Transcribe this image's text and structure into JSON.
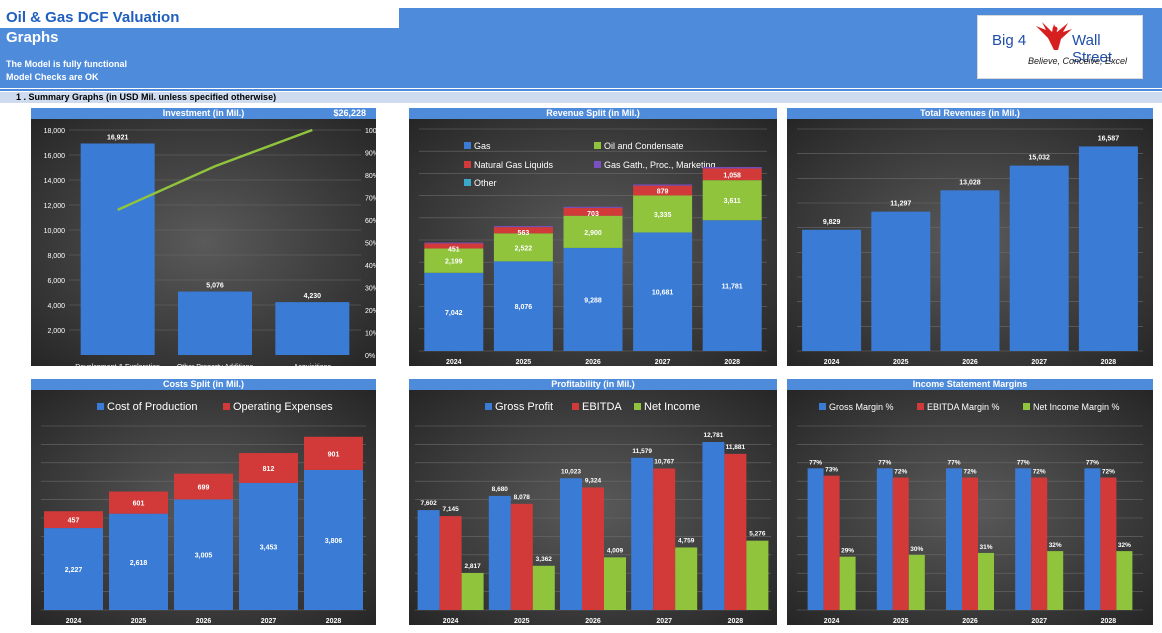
{
  "header": {
    "title": "Oil & Gas DCF Valuation",
    "subtitle": "Graphs",
    "status_line1": "The Model is fully functional",
    "status_line2": "Model Checks are OK",
    "logo_left": "Big 4",
    "logo_right": "Wall Street",
    "logo_tagline": "Believe, Conceive, Excel"
  },
  "section": {
    "title": "1 .  Summary Graphs (in USD Mil. unless specified otherwise)"
  },
  "colors": {
    "blue": "#3a7bd5",
    "red": "#d23a3a",
    "green": "#8fc43c",
    "purple": "#7a4fbf",
    "teal": "#3aa9c9",
    "line": "#8fc43c"
  },
  "chart_data": [
    {
      "id": "investment",
      "type": "bar",
      "title": "Investment (in Mil.)",
      "title_extra": "$26,228",
      "categories": [
        "Development & Exploration",
        "Other Property Additions",
        "Acquisitions"
      ],
      "values": [
        16921,
        5076,
        4230
      ],
      "value_labels": [
        "16,921",
        "5,076",
        "4,230"
      ],
      "line_values": [
        0.645,
        0.839,
        1.0
      ],
      "ylim": [
        0,
        18000
      ],
      "yticks": [
        "18,000",
        "16,000",
        "14,000",
        "12,000",
        "10,000",
        "8,000",
        "6,000",
        "4,000",
        "2,000"
      ],
      "y2lim": [
        0,
        1
      ],
      "y2ticks": [
        "100%",
        "90%",
        "80%",
        "70%",
        "60%",
        "50%",
        "40%",
        "30%",
        "20%",
        "10%",
        "0%"
      ]
    },
    {
      "id": "revenue_split",
      "type": "bar",
      "stacked": true,
      "title": "Revenue Split (in Mil.)",
      "categories": [
        "2024",
        "2025",
        "2026",
        "2027",
        "2028"
      ],
      "legend": [
        "Gas",
        "Oil and Condensate",
        "Natural Gas Liquids",
        "Gas Gath., Proc., Marketing",
        "Other"
      ],
      "series": [
        {
          "name": "Gas",
          "values": [
            7042,
            8076,
            9288,
            10681,
            11781
          ],
          "labels": [
            "7,042",
            "8,076",
            "9,288",
            "10,681",
            "11,781"
          ]
        },
        {
          "name": "Oil and Condensate",
          "values": [
            2199,
            2522,
            2900,
            3335,
            3611
          ],
          "labels": [
            "2,199",
            "2,522",
            "2,900",
            "3,335",
            "3,611"
          ]
        },
        {
          "name": "Natural Gas Liquids",
          "values": [
            451,
            563,
            703,
            879,
            1058
          ],
          "labels": [
            "451",
            "563",
            "703",
            "879",
            "1,058"
          ]
        },
        {
          "name": "Gas Gath., Proc., Marketing",
          "values": [
            80,
            90,
            100,
            110,
            120
          ],
          "labels": []
        },
        {
          "name": "Other",
          "values": [
            0,
            0,
            0,
            0,
            0
          ],
          "labels": []
        }
      ]
    },
    {
      "id": "total_revenues",
      "type": "bar",
      "title": "Total Revenues (in Mil.)",
      "categories": [
        "2024",
        "2025",
        "2026",
        "2027",
        "2028"
      ],
      "values": [
        9829,
        11297,
        13028,
        15032,
        16587
      ],
      "value_labels": [
        "9,829",
        "11,297",
        "13,028",
        "15,032",
        "16,587"
      ]
    },
    {
      "id": "costs_split",
      "type": "bar",
      "stacked": true,
      "title": "Costs Split (in Mil.)",
      "categories": [
        "2024",
        "2025",
        "2026",
        "2027",
        "2028"
      ],
      "legend": [
        "Cost of Production",
        "Operating Expenses"
      ],
      "series": [
        {
          "name": "Cost of Production",
          "values": [
            2227,
            2618,
            3005,
            3453,
            3806
          ],
          "labels": [
            "2,227",
            "2,618",
            "3,005",
            "3,453",
            "3,806"
          ]
        },
        {
          "name": "Operating Expenses",
          "values": [
            457,
            601,
            699,
            812,
            901
          ],
          "labels": [
            "457",
            "601",
            "699",
            "812",
            "901"
          ]
        }
      ]
    },
    {
      "id": "profitability",
      "type": "bar",
      "title": "Profitability (in Mil.)",
      "categories": [
        "2024",
        "2025",
        "2026",
        "2027",
        "2028"
      ],
      "legend": [
        "Gross Profit",
        "EBITDA",
        "Net Income"
      ],
      "series": [
        {
          "name": "Gross Profit",
          "values": [
            7602,
            8680,
            10023,
            11579,
            12781
          ],
          "labels": [
            "7,602",
            "8,680",
            "10,023",
            "11,579",
            "12,781"
          ]
        },
        {
          "name": "EBITDA",
          "values": [
            7145,
            8078,
            9324,
            10767,
            11881
          ],
          "labels": [
            "7,145",
            "8,078",
            "9,324",
            "10,767",
            "11,881"
          ]
        },
        {
          "name": "Net Income",
          "values": [
            2817,
            3362,
            4009,
            4759,
            5276
          ],
          "labels": [
            "2,817",
            "3,362",
            "4,009",
            "4,759",
            "5,276"
          ]
        }
      ]
    },
    {
      "id": "margins",
      "type": "bar",
      "title": "Income Statement Margins",
      "categories": [
        "2024",
        "2025",
        "2026",
        "2027",
        "2028"
      ],
      "legend": [
        "Gross Margin %",
        "EBITDA Margin %",
        "Net Income Margin %"
      ],
      "series": [
        {
          "name": "Gross Margin %",
          "values": [
            77,
            77,
            77,
            77,
            77
          ],
          "labels": [
            "77%",
            "77%",
            "77%",
            "77%",
            "77%"
          ]
        },
        {
          "name": "EBITDA Margin %",
          "values": [
            73,
            72,
            72,
            72,
            72
          ],
          "labels": [
            "73%",
            "72%",
            "72%",
            "72%",
            "72%"
          ]
        },
        {
          "name": "Net Income Margin %",
          "values": [
            29,
            30,
            31,
            32,
            32
          ],
          "labels": [
            "29%",
            "30%",
            "31%",
            "32%",
            "32%"
          ]
        }
      ]
    }
  ]
}
